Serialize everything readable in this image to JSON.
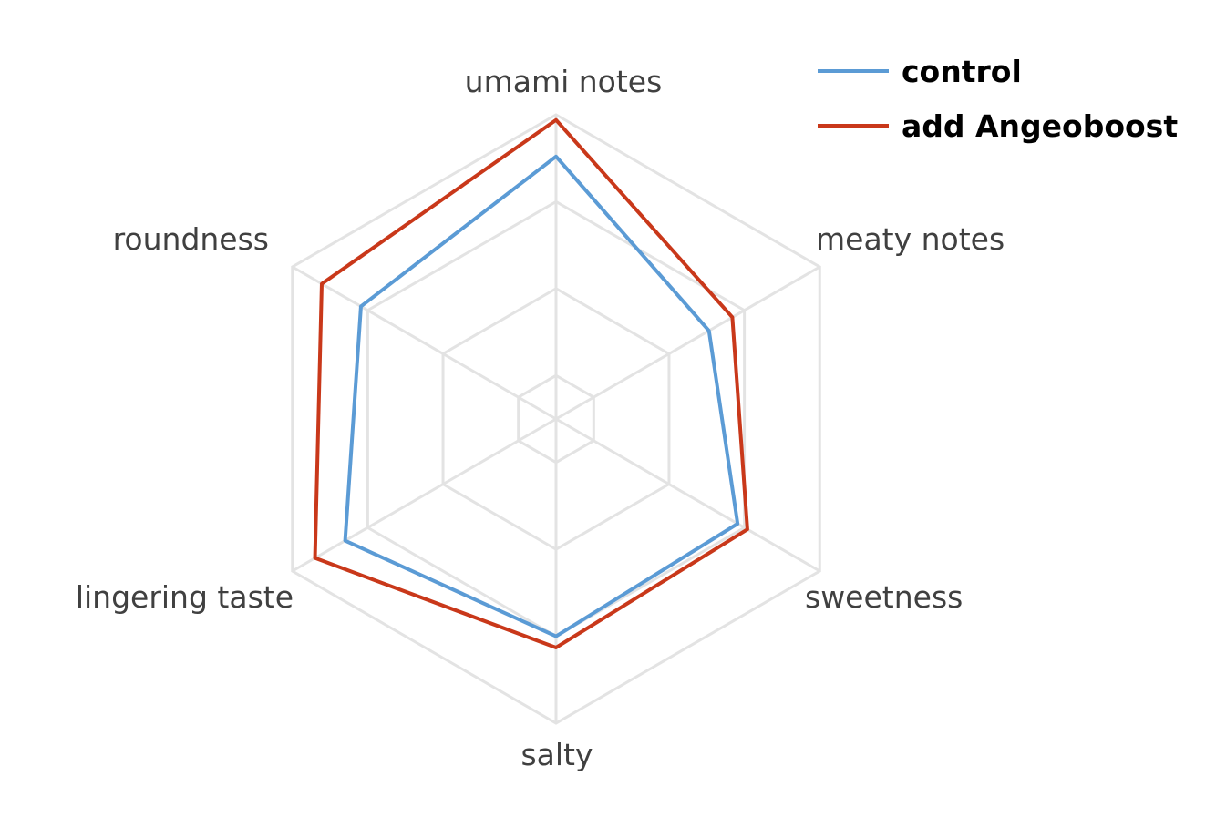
{
  "chart_data": {
    "type": "radar",
    "title": "",
    "categories": [
      "umami notes",
      "meaty notes",
      "sweetness",
      "salty",
      "lingering taste",
      "roundness"
    ],
    "axis": {
      "min": 1.5,
      "max": 5,
      "major_unit": 1,
      "grid": true,
      "tick_labels_shown": false
    },
    "legend_position": "top-right",
    "series": [
      {
        "name": "control",
        "color": "#5B9BD5",
        "values": [
          4.52,
          3.53,
          3.91,
          4.0,
          4.3,
          4.09
        ]
      },
      {
        "name": "add Angeoboost",
        "color": "#C9381A",
        "values": [
          4.94,
          3.84,
          4.04,
          4.13,
          4.7,
          4.61
        ]
      }
    ],
    "grid_color": "#E3E3E3"
  }
}
